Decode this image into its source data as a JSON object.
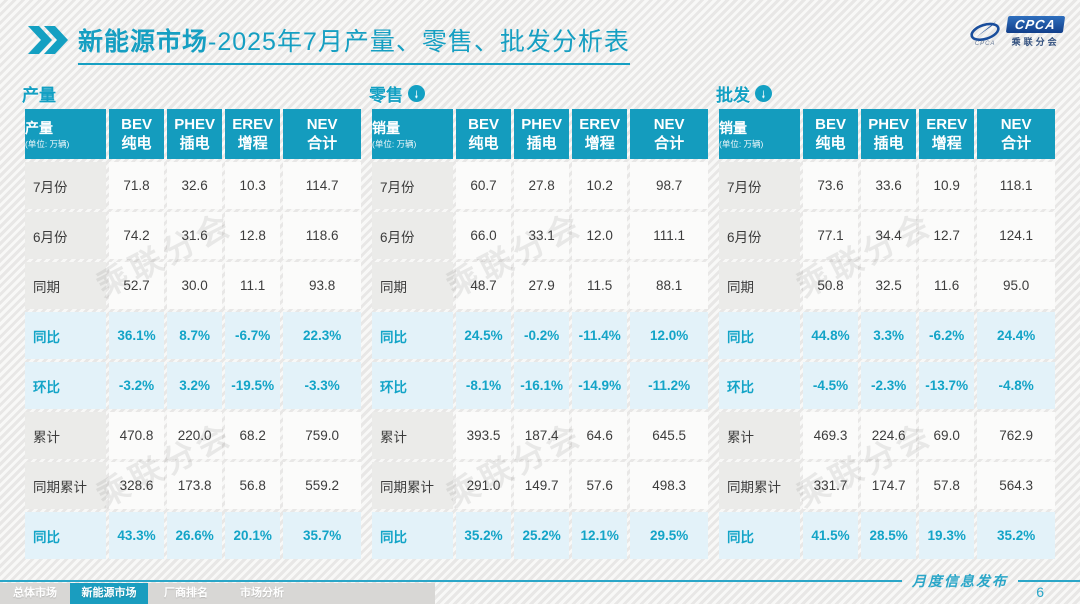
{
  "title": {
    "brand": "新能源市场",
    "rest": "-2025年7月产量、零售、批发分析表"
  },
  "logo": {
    "name": "CPCA",
    "subtitle": "乘联分会",
    "caption": "CPCA"
  },
  "watermark_text": "乘联分会",
  "tables": [
    {
      "id": "production",
      "section_label": "产量",
      "arrow": false,
      "header_label": "产量",
      "unit": "(单位: 万辆)",
      "columns": [
        {
          "l1": "BEV",
          "l2": "纯电"
        },
        {
          "l1": "PHEV",
          "l2": "插电"
        },
        {
          "l1": "EREV",
          "l2": "增程"
        },
        {
          "l1": "NEV",
          "l2": "合计"
        }
      ],
      "rows": [
        {
          "label": "7月份",
          "values": [
            "71.8",
            "32.6",
            "10.3",
            "114.7"
          ],
          "highlight": false
        },
        {
          "label": "6月份",
          "values": [
            "74.2",
            "31.6",
            "12.8",
            "118.6"
          ],
          "highlight": false
        },
        {
          "label": "同期",
          "values": [
            "52.7",
            "30.0",
            "11.1",
            "93.8"
          ],
          "highlight": false
        },
        {
          "label": "同比",
          "values": [
            "36.1%",
            "8.7%",
            "-6.7%",
            "22.3%"
          ],
          "highlight": true
        },
        {
          "label": "环比",
          "values": [
            "-3.2%",
            "3.2%",
            "-19.5%",
            "-3.3%"
          ],
          "highlight": true
        },
        {
          "label": "累计",
          "values": [
            "470.8",
            "220.0",
            "68.2",
            "759.0"
          ],
          "highlight": false
        },
        {
          "label": "同期累计",
          "values": [
            "328.6",
            "173.8",
            "56.8",
            "559.2"
          ],
          "highlight": false
        },
        {
          "label": "同比",
          "values": [
            "43.3%",
            "26.6%",
            "20.1%",
            "35.7%"
          ],
          "highlight": true
        }
      ]
    },
    {
      "id": "retail",
      "section_label": "零售",
      "arrow": true,
      "header_label": "销量",
      "unit": "(单位: 万辆)",
      "columns": [
        {
          "l1": "BEV",
          "l2": "纯电"
        },
        {
          "l1": "PHEV",
          "l2": "插电"
        },
        {
          "l1": "EREV",
          "l2": "增程"
        },
        {
          "l1": "NEV",
          "l2": "合计"
        }
      ],
      "rows": [
        {
          "label": "7月份",
          "values": [
            "60.7",
            "27.8",
            "10.2",
            "98.7"
          ],
          "highlight": false
        },
        {
          "label": "6月份",
          "values": [
            "66.0",
            "33.1",
            "12.0",
            "111.1"
          ],
          "highlight": false
        },
        {
          "label": "同期",
          "values": [
            "48.7",
            "27.9",
            "11.5",
            "88.1"
          ],
          "highlight": false
        },
        {
          "label": "同比",
          "values": [
            "24.5%",
            "-0.2%",
            "-11.4%",
            "12.0%"
          ],
          "highlight": true
        },
        {
          "label": "环比",
          "values": [
            "-8.1%",
            "-16.1%",
            "-14.9%",
            "-11.2%"
          ],
          "highlight": true
        },
        {
          "label": "累计",
          "values": [
            "393.5",
            "187.4",
            "64.6",
            "645.5"
          ],
          "highlight": false
        },
        {
          "label": "同期累计",
          "values": [
            "291.0",
            "149.7",
            "57.6",
            "498.3"
          ],
          "highlight": false
        },
        {
          "label": "同比",
          "values": [
            "35.2%",
            "25.2%",
            "12.1%",
            "29.5%"
          ],
          "highlight": true
        }
      ]
    },
    {
      "id": "wholesale",
      "section_label": "批发",
      "arrow": true,
      "header_label": "销量",
      "unit": "(单位: 万辆)",
      "columns": [
        {
          "l1": "BEV",
          "l2": "纯电"
        },
        {
          "l1": "PHEV",
          "l2": "插电"
        },
        {
          "l1": "EREV",
          "l2": "增程"
        },
        {
          "l1": "NEV",
          "l2": "合计"
        }
      ],
      "rows": [
        {
          "label": "7月份",
          "values": [
            "73.6",
            "33.6",
            "10.9",
            "118.1"
          ],
          "highlight": false
        },
        {
          "label": "6月份",
          "values": [
            "77.1",
            "34.4",
            "12.7",
            "124.1"
          ],
          "highlight": false
        },
        {
          "label": "同期",
          "values": [
            "50.8",
            "32.5",
            "11.6",
            "95.0"
          ],
          "highlight": false
        },
        {
          "label": "同比",
          "values": [
            "44.8%",
            "3.3%",
            "-6.2%",
            "24.4%"
          ],
          "highlight": true
        },
        {
          "label": "环比",
          "values": [
            "-4.5%",
            "-2.3%",
            "-13.7%",
            "-4.8%"
          ],
          "highlight": true
        },
        {
          "label": "累计",
          "values": [
            "469.3",
            "224.6",
            "69.0",
            "762.9"
          ],
          "highlight": false
        },
        {
          "label": "同期累计",
          "values": [
            "331.7",
            "174.7",
            "57.8",
            "564.3"
          ],
          "highlight": false
        },
        {
          "label": "同比",
          "values": [
            "41.5%",
            "28.5%",
            "19.3%",
            "35.2%"
          ],
          "highlight": true
        }
      ]
    }
  ],
  "footer": {
    "note": "月度信息发布",
    "page": "6",
    "tabs": [
      {
        "label": "总体市场",
        "active": false
      },
      {
        "label": "新能源市场",
        "active": true
      },
      {
        "label": "厂商排名",
        "active": false
      },
      {
        "label": "市场分析",
        "active": false
      }
    ]
  },
  "colors": {
    "accent_teal": "#149CBE",
    "title_teal": "#169FC2",
    "highlight_bg": "#E3F2F9",
    "highlight_text": "#13A4C7",
    "label_cell_bg": "#EBEBE9",
    "data_cell_bg": "#FBFBFA",
    "logo_blue": "#123F8A",
    "inactive_tab": "#D8D7D5"
  }
}
